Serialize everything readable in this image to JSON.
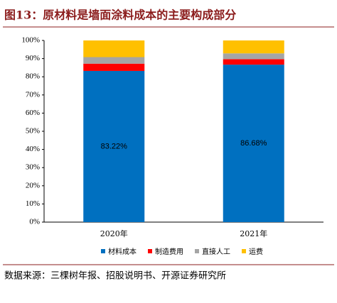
{
  "chart_data": {
    "type": "stacked_bar",
    "title": "图13：原材料是墙面涂料成本的主要构成部分",
    "source": "数据来源：三棵树年报、招股说明书、开源证券研究所",
    "categories": [
      "2020年",
      "2021年"
    ],
    "series": [
      {
        "name": "材料成本",
        "color": "#0070c0",
        "values": [
          83.22,
          86.68
        ],
        "value_labels": [
          "83.22%",
          "86.68%"
        ]
      },
      {
        "name": "制造费用",
        "color": "#ff0000",
        "values": [
          4.0,
          3.0
        ]
      },
      {
        "name": "直接人工",
        "color": "#a5a5a5",
        "values": [
          3.6,
          3.2
        ]
      },
      {
        "name": "运费",
        "color": "#ffc000",
        "values": [
          9.18,
          7.12
        ]
      }
    ],
    "ylim": [
      0,
      100
    ],
    "yticks": [
      {
        "value": 0,
        "label": "0%"
      },
      {
        "value": 10,
        "label": "10%"
      },
      {
        "value": 20,
        "label": "20%"
      },
      {
        "value": 30,
        "label": "30%"
      },
      {
        "value": 40,
        "label": "40%"
      },
      {
        "value": 50,
        "label": "50%"
      },
      {
        "value": 60,
        "label": "60%"
      },
      {
        "value": 70,
        "label": "70%"
      },
      {
        "value": 80,
        "label": "80%"
      },
      {
        "value": 90,
        "label": "90%"
      },
      {
        "value": 100,
        "label": "100%"
      }
    ],
    "legend": "bottom"
  }
}
